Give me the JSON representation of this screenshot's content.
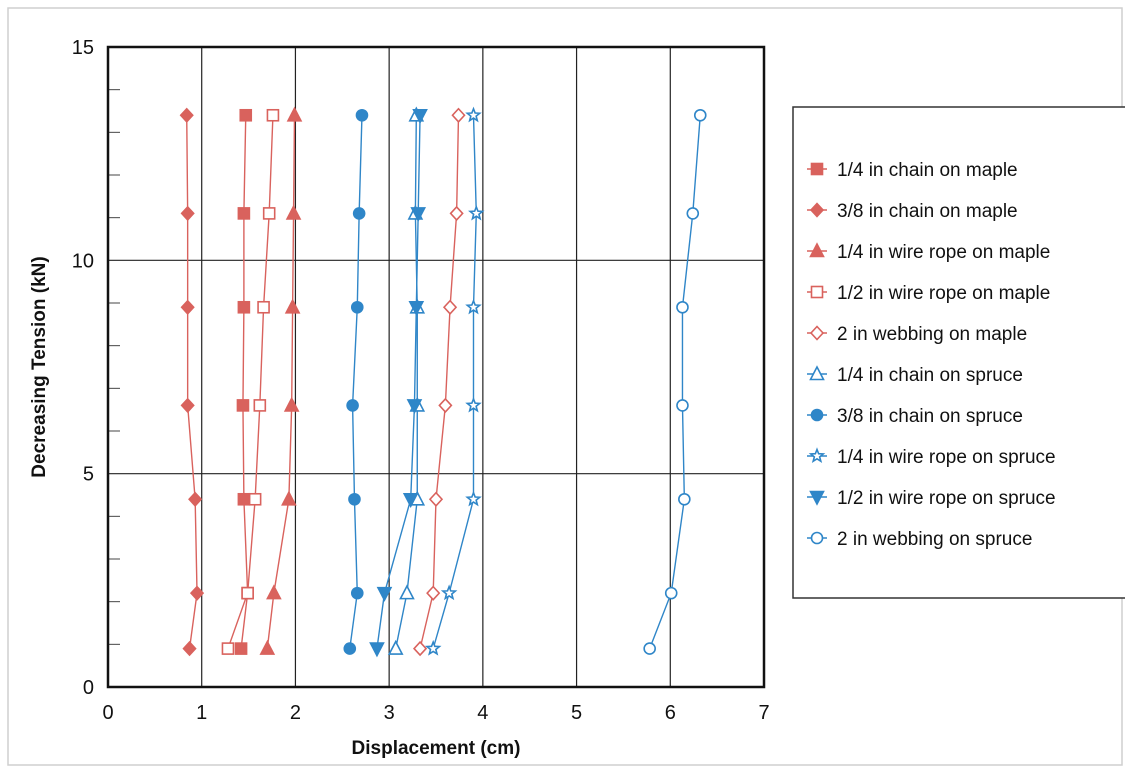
{
  "chart_data": {
    "type": "scatter",
    "title": "",
    "xlabel": "Displacement  (cm)",
    "ylabel": "Decreasing Tension  (kN)",
    "xlim": [
      0,
      7
    ],
    "ylim": [
      0,
      15
    ],
    "x_ticks": [
      0,
      1,
      2,
      3,
      4,
      5,
      6,
      7
    ],
    "y_ticks": [
      0,
      5,
      10,
      15
    ],
    "y_minor_step": 1,
    "grid": "major",
    "legend_position": "right",
    "series": [
      {
        "name": "1/4 in chain on maple",
        "color": "#d9625d",
        "marker": "square",
        "filled": true,
        "points": [
          [
            1.42,
            0.9
          ],
          [
            1.49,
            2.2
          ],
          [
            1.45,
            4.4
          ],
          [
            1.44,
            6.6
          ],
          [
            1.45,
            8.9
          ],
          [
            1.45,
            11.1
          ],
          [
            1.47,
            13.4
          ]
        ]
      },
      {
        "name": "3/8 in chain on maple",
        "color": "#d9625d",
        "marker": "diamond",
        "filled": true,
        "points": [
          [
            0.87,
            0.9
          ],
          [
            0.95,
            2.2
          ],
          [
            0.93,
            4.4
          ],
          [
            0.85,
            6.6
          ],
          [
            0.85,
            8.9
          ],
          [
            0.85,
            11.1
          ],
          [
            0.84,
            13.4
          ]
        ]
      },
      {
        "name": "1/4 in wire rope on maple",
        "color": "#d9625d",
        "marker": "triangle-up",
        "filled": true,
        "points": [
          [
            1.7,
            0.9
          ],
          [
            1.77,
            2.2
          ],
          [
            1.93,
            4.4
          ],
          [
            1.96,
            6.6
          ],
          [
            1.97,
            8.9
          ],
          [
            1.98,
            11.1
          ],
          [
            1.99,
            13.4
          ]
        ]
      },
      {
        "name": "1/2 in wire rope on maple",
        "color": "#d9625d",
        "marker": "square",
        "filled": false,
        "points": [
          [
            1.28,
            0.9
          ],
          [
            1.49,
            2.2
          ],
          [
            1.57,
            4.4
          ],
          [
            1.62,
            6.6
          ],
          [
            1.66,
            8.9
          ],
          [
            1.72,
            11.1
          ],
          [
            1.76,
            13.4
          ]
        ]
      },
      {
        "name": "2 in webbing on maple",
        "color": "#d9625d",
        "marker": "diamond",
        "filled": false,
        "points": [
          [
            3.33,
            0.9
          ],
          [
            3.47,
            2.2
          ],
          [
            3.5,
            4.4
          ],
          [
            3.6,
            6.6
          ],
          [
            3.65,
            8.9
          ],
          [
            3.72,
            11.1
          ],
          [
            3.74,
            13.4
          ]
        ]
      },
      {
        "name": "1/4 in chain on spruce",
        "color": "#2f86c8",
        "marker": "triangle-up",
        "filled": false,
        "points": [
          [
            3.07,
            0.9
          ],
          [
            3.19,
            2.2
          ],
          [
            3.3,
            4.4
          ],
          [
            3.3,
            6.6
          ],
          [
            3.3,
            8.9
          ],
          [
            3.28,
            11.1
          ],
          [
            3.29,
            13.4
          ]
        ]
      },
      {
        "name": "3/8 in chain on spruce",
        "color": "#2f86c8",
        "marker": "circle",
        "filled": true,
        "points": [
          [
            2.58,
            0.9
          ],
          [
            2.66,
            2.2
          ],
          [
            2.63,
            4.4
          ],
          [
            2.61,
            6.6
          ],
          [
            2.66,
            8.9
          ],
          [
            2.68,
            11.1
          ],
          [
            2.71,
            13.4
          ]
        ]
      },
      {
        "name": "1/4 in wire rope on spruce",
        "color": "#2f86c8",
        "marker": "star",
        "filled": false,
        "points": [
          [
            3.47,
            0.9
          ],
          [
            3.64,
            2.2
          ],
          [
            3.9,
            4.4
          ],
          [
            3.9,
            6.6
          ],
          [
            3.9,
            8.9
          ],
          [
            3.93,
            11.1
          ],
          [
            3.9,
            13.4
          ]
        ]
      },
      {
        "name": "1/2 in wire rope on spruce",
        "color": "#2f86c8",
        "marker": "triangle-down",
        "filled": true,
        "points": [
          [
            2.87,
            0.9
          ],
          [
            2.95,
            2.2
          ],
          [
            3.23,
            4.4
          ],
          [
            3.27,
            6.6
          ],
          [
            3.29,
            8.9
          ],
          [
            3.31,
            11.1
          ],
          [
            3.33,
            13.4
          ]
        ]
      },
      {
        "name": "2 in webbing on spruce",
        "color": "#2f86c8",
        "marker": "circle",
        "filled": false,
        "points": [
          [
            5.78,
            0.9
          ],
          [
            6.01,
            2.2
          ],
          [
            6.15,
            4.4
          ],
          [
            6.13,
            6.6
          ],
          [
            6.13,
            8.9
          ],
          [
            6.24,
            11.1
          ],
          [
            6.32,
            13.4
          ]
        ]
      }
    ]
  }
}
